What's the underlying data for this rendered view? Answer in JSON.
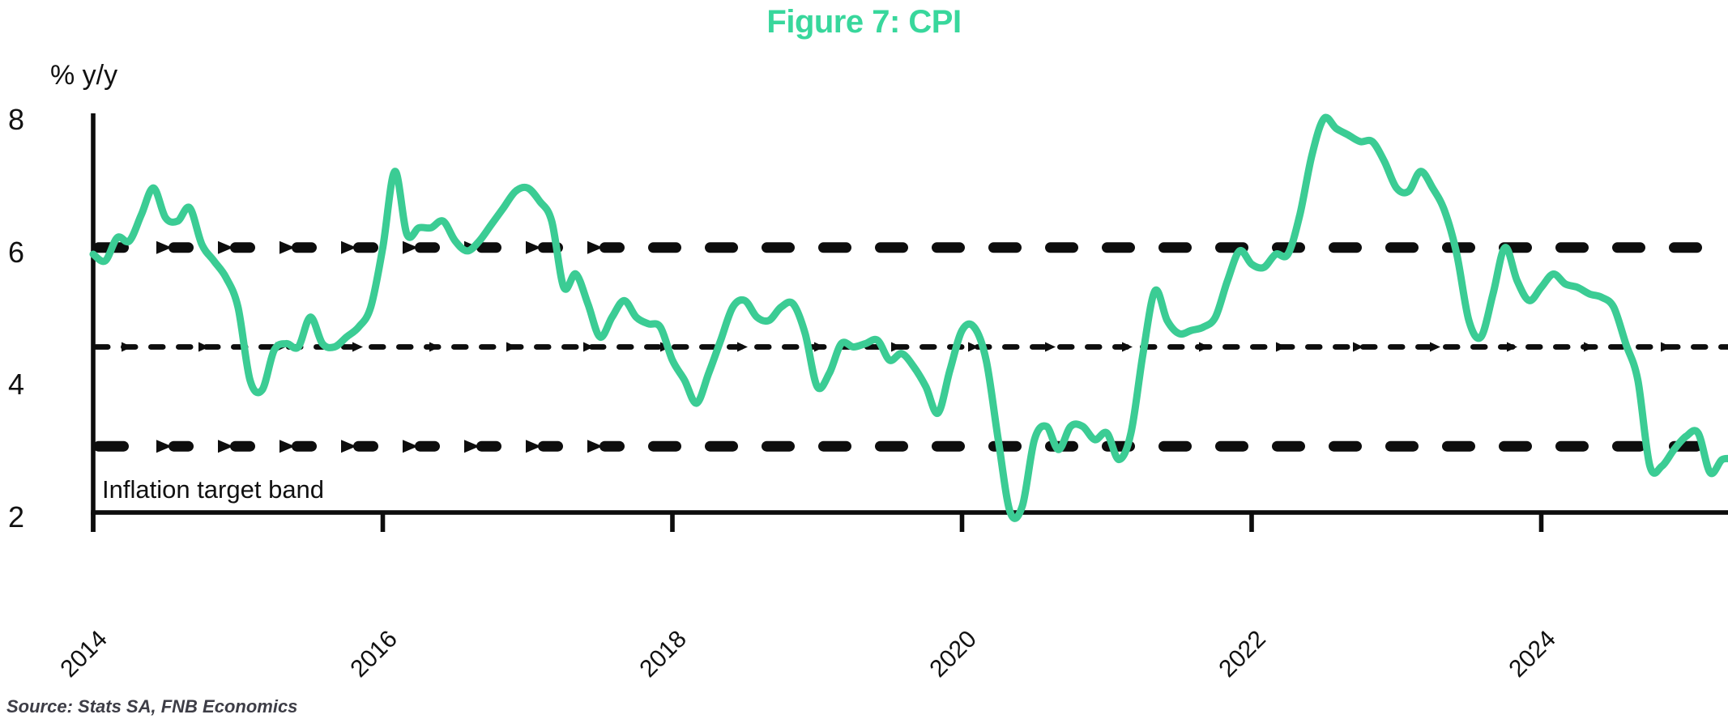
{
  "title": "Figure 7: CPI",
  "y_axis": {
    "label": "% y/y",
    "ticks": [
      "8",
      "6",
      "4",
      "2"
    ],
    "tick_values": [
      8,
      6,
      4,
      2
    ]
  },
  "x_axis": {
    "ticks": [
      "2014",
      "2016",
      "2018",
      "2020",
      "2022",
      "2024"
    ],
    "tick_values": [
      2014,
      2016,
      2018,
      2020,
      2022,
      2024
    ]
  },
  "annotations": {
    "band_label": "Inflation target band",
    "source": "Source: Stats SA, FNB Economics"
  },
  "colors": {
    "title_green": "#38d79c",
    "line_green": "#3bcc94",
    "ink": "#0d0d0d",
    "source_text": "#3d3d46"
  },
  "chart_data": {
    "type": "line",
    "title": "Figure 7: CPI",
    "xlabel": "",
    "ylabel": "% y/y",
    "x_domain": [
      2014.0,
      2025.42
    ],
    "y_domain": [
      2,
      8
    ],
    "grid": false,
    "legend": "none",
    "x_tick_years": [
      2014,
      2016,
      2018,
      2020,
      2022,
      2024
    ],
    "y_ticks": [
      2,
      4,
      6,
      8
    ],
    "reference_lines": [
      {
        "name": "inflation-target-upper",
        "value": 6.0,
        "style": "thick-dashed"
      },
      {
        "name": "inflation-target-midpoint",
        "value": 4.5,
        "style": "thin-dashed"
      },
      {
        "name": "inflation-target-lower",
        "value": 3.0,
        "style": "thick-dashed"
      }
    ],
    "band_label": "Inflation target band",
    "series": [
      {
        "name": "CPI (% y/y)",
        "frequency": "monthly",
        "start": "2014-01",
        "end": "2025-05",
        "values": [
          5.9,
          5.8,
          6.15,
          6.1,
          6.5,
          6.9,
          6.45,
          6.4,
          6.6,
          6.05,
          5.8,
          5.55,
          5.1,
          4.0,
          3.85,
          4.45,
          4.55,
          4.5,
          4.95,
          4.55,
          4.5,
          4.65,
          4.8,
          5.1,
          6.0,
          7.15,
          6.2,
          6.3,
          6.3,
          6.4,
          6.1,
          5.95,
          6.1,
          6.35,
          6.6,
          6.85,
          6.9,
          6.7,
          6.4,
          5.4,
          5.6,
          5.15,
          4.65,
          4.95,
          5.2,
          4.95,
          4.85,
          4.8,
          4.3,
          4.0,
          3.65,
          4.1,
          4.6,
          5.1,
          5.2,
          4.95,
          4.9,
          5.1,
          5.15,
          4.7,
          3.9,
          4.1,
          4.55,
          4.5,
          4.55,
          4.6,
          4.3,
          4.4,
          4.2,
          3.9,
          3.5,
          4.15,
          4.75,
          4.8,
          4.3,
          3.1,
          2.0,
          2.1,
          3.1,
          3.3,
          2.95,
          3.3,
          3.3,
          3.1,
          3.2,
          2.8,
          3.2,
          4.4,
          5.35,
          4.9,
          4.7,
          4.75,
          4.8,
          4.95,
          5.5,
          5.95,
          5.75,
          5.7,
          5.9,
          5.9,
          6.5,
          7.4,
          7.95,
          7.8,
          7.7,
          7.6,
          7.6,
          7.3,
          6.9,
          6.85,
          7.15,
          6.9,
          6.55,
          5.9,
          4.9,
          4.65,
          5.3,
          6.0,
          5.5,
          5.2,
          5.4,
          5.6,
          5.45,
          5.4,
          5.3,
          5.25,
          5.1,
          4.55,
          4.0,
          2.7,
          2.7,
          2.95,
          3.15,
          3.2,
          2.6,
          2.8,
          2.8
        ]
      }
    ]
  }
}
